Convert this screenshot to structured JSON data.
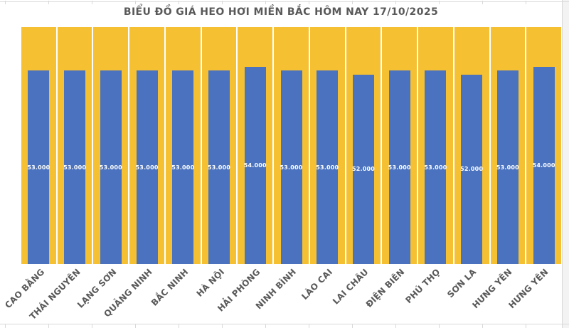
{
  "chart_data": {
    "type": "bar",
    "title": "BIỂU ĐỒ GIÁ HEO HƠI MIỀN BẮC HÔM NAY 17/10/2025",
    "categories": [
      "CAO BẰNG",
      "THÁI NGUYÊN",
      "LẠNG SƠN",
      "QUẢNG NINH",
      "BẮC NINH",
      "HÀ NỘI",
      "HẢI PHÒNG",
      "NINH BÌNH",
      "LÀO CAI",
      "LAI CHÂU",
      "ĐIỆN BIÊN",
      "PHÚ THỌ",
      "SƠN LA",
      "HƯNG YÊN",
      "HƯNG YÊN"
    ],
    "values": [
      53000,
      53000,
      53000,
      53000,
      53000,
      53000,
      54000,
      53000,
      53000,
      52000,
      53000,
      53000,
      52000,
      53000,
      54000
    ],
    "value_labels": [
      "53.000",
      "53.000",
      "53.000",
      "53.000",
      "53.000",
      "53.000",
      "54.000",
      "53.000",
      "53.000",
      "52.000",
      "53.000",
      "53.000",
      "52.000",
      "53.000",
      "54.000"
    ],
    "xlabel": "",
    "ylabel": "",
    "ylim": [
      0,
      65000
    ],
    "grid": false,
    "legend": false,
    "value_label_position": "inside-center",
    "x_label_rotation_deg": -45,
    "colors": {
      "bar": "#4A72BE",
      "plot_background": "#F5C032",
      "column_separator": "#FFFFFF",
      "value_label": "#FFFFFF",
      "axis_label": "#595959",
      "title": "#595959",
      "spreadsheet_gridline": "#D9D9D9"
    }
  }
}
